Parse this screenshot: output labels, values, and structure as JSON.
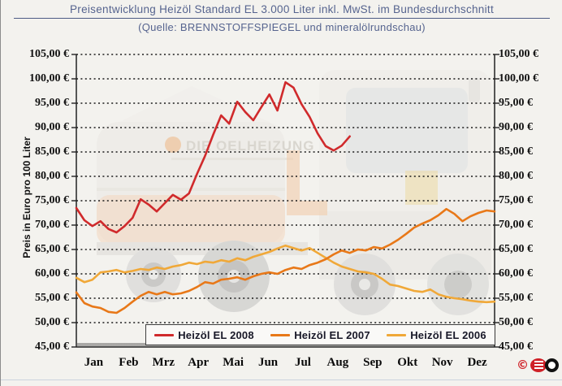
{
  "header": {
    "title": "Preisentwicklung Heizöl Standard EL 3.000 Liter inkl. MwSt. im Bundesdurchschnitt",
    "subtitle": "(Quelle: BRENNSTOFFSPIEGEL und mineralölrundschau)"
  },
  "watermark": {
    "text": "DIE OELHEIZUNG"
  },
  "footer": {
    "copyright_symbol": "©"
  },
  "colors": {
    "series_2008": "#d02a2c",
    "series_2007": "#e87818",
    "series_2006": "#f0a838",
    "title_blue": "#56648f",
    "grid": "#1a1a1a",
    "background": "#f3f2ee"
  },
  "chart_data": {
    "type": "line",
    "title": "Preisentwicklung Heizöl Standard EL 3.000 Liter inkl. MwSt. im Bundesdurchschnitt",
    "subtitle": "(Quelle: BRENNSTOFFSPIEGEL und mineralölrundschau)",
    "xlabel": "",
    "ylabel": "Preis in Euro pro 100 Liter",
    "ylim": [
      45,
      105
    ],
    "ytick_step": 5,
    "ytick_labels": [
      "105,00 €",
      "100,00 €",
      "95,00 €",
      "90,00 €",
      "85,00 €",
      "80,00 €",
      "75,00 €",
      "70,00 €",
      "65,00 €",
      "60,00 €",
      "55,00 €",
      "50,00 €",
      "45,00 €"
    ],
    "categories": [
      "Jan",
      "Feb",
      "Mrz",
      "Apr",
      "Mai",
      "Jun",
      "Jul",
      "Aug",
      "Sep",
      "Okt",
      "Nov",
      "Dez"
    ],
    "x_unit": "weekly (53 slots per year)",
    "grid": "horizontal-dotted",
    "legend_position": "bottom-inside-box",
    "currency": "EUR per 100 Liter",
    "series": [
      {
        "name": "Heizöl EL 2008",
        "color": "#d02a2c",
        "note": "data ends late August",
        "values": [
          73.5,
          71.0,
          69.8,
          70.8,
          69.2,
          68.5,
          69.8,
          71.5,
          75.3,
          74.2,
          72.8,
          74.5,
          76.2,
          75.2,
          76.5,
          80.5,
          84.2,
          88.5,
          92.5,
          90.8,
          95.3,
          93.2,
          91.5,
          94.2,
          96.8,
          93.5,
          99.3,
          98.2,
          94.8,
          92.2,
          88.8,
          86.2,
          85.3,
          86.3,
          88.2
        ]
      },
      {
        "name": "Heizöl EL 2007",
        "color": "#e87818",
        "values": [
          56.2,
          54.0,
          53.3,
          53.0,
          52.2,
          52.0,
          53.0,
          54.3,
          55.5,
          56.3,
          55.8,
          56.3,
          55.8,
          56.0,
          56.5,
          57.3,
          58.3,
          58.0,
          58.8,
          59.0,
          59.3,
          58.8,
          59.5,
          60.0,
          60.3,
          60.0,
          60.8,
          61.3,
          61.0,
          61.8,
          62.3,
          63.0,
          64.0,
          64.8,
          64.3,
          65.0,
          64.8,
          65.5,
          65.2,
          66.0,
          67.0,
          68.2,
          69.5,
          70.3,
          71.0,
          72.0,
          73.3,
          72.3,
          70.8,
          71.8,
          72.5,
          73.0,
          72.8
        ]
      },
      {
        "name": "Heizöl EL 2006",
        "color": "#f0a838",
        "values": [
          59.2,
          58.3,
          58.8,
          60.3,
          60.5,
          60.8,
          60.3,
          60.6,
          61.0,
          60.8,
          61.3,
          61.0,
          61.5,
          61.8,
          62.3,
          62.0,
          62.5,
          62.3,
          62.8,
          62.5,
          63.2,
          62.8,
          63.5,
          64.0,
          64.5,
          65.2,
          65.8,
          65.3,
          64.8,
          65.3,
          64.3,
          63.3,
          62.3,
          61.5,
          61.0,
          60.5,
          60.3,
          60.0,
          59.0,
          57.8,
          57.5,
          57.0,
          56.5,
          56.3,
          56.8,
          55.8,
          55.3,
          55.0,
          54.8,
          54.5,
          54.3,
          54.2,
          54.3
        ]
      }
    ]
  }
}
